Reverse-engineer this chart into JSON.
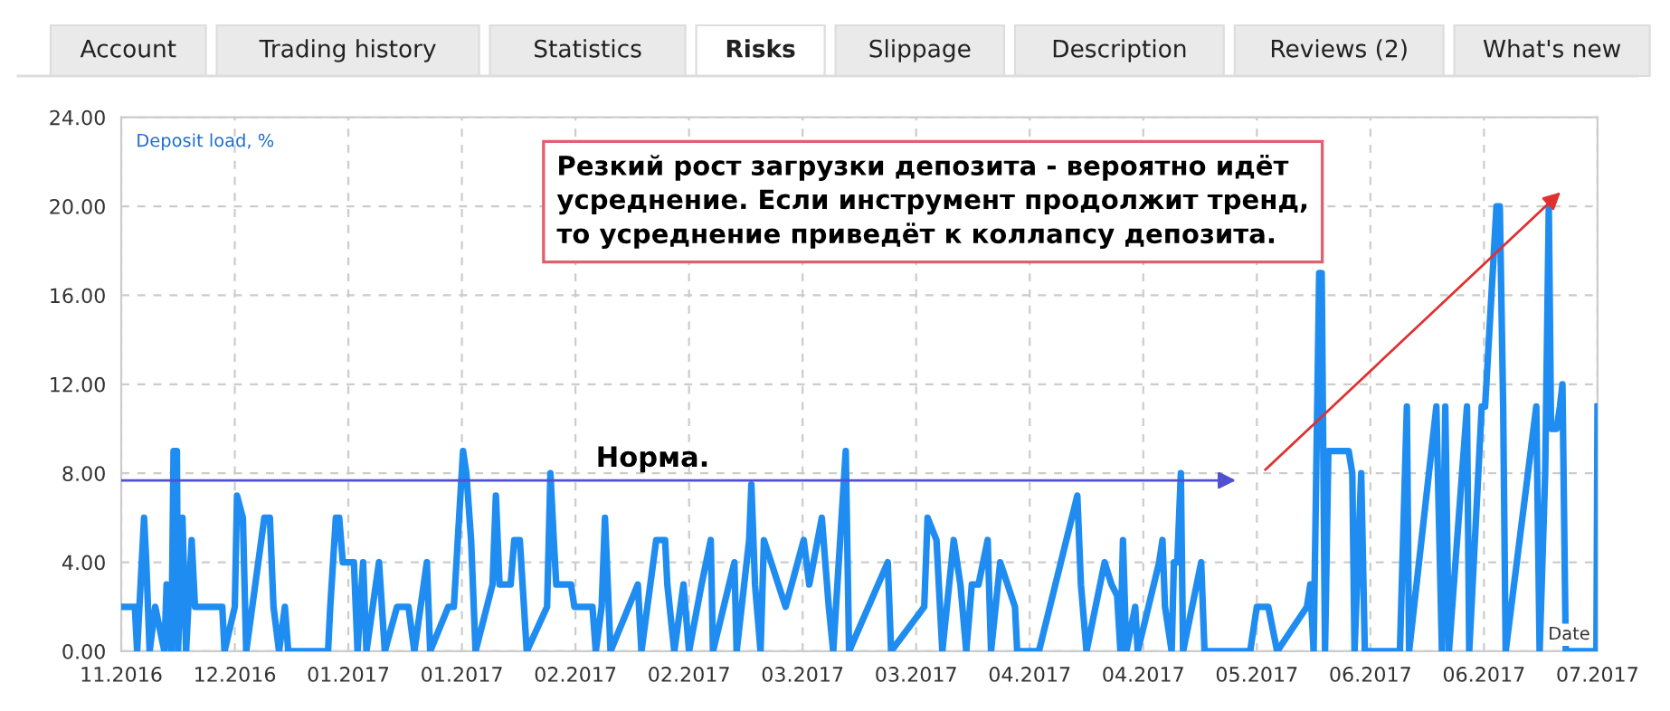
{
  "chart_data": {
    "type": "line",
    "ylabel": "Deposit load, %",
    "xlabel": "Date",
    "annotations": [
      "Account",
      "Trading history",
      "Statistics",
      "Risks",
      "Slippage",
      "Description",
      "Reviews (2)",
      "What's new",
      "Норма.",
      "Резкий рост загрузки депозита - вероятно идёт\nусреднение. Если инструмент продолжит тренд,\nто усреднение приведёт к коллапсу депозита."
    ],
    "xlim": [
      "2016-11-28",
      "2017-07-07"
    ],
    "ylim": [
      0,
      24
    ],
    "xticks": [
      {
        "value": "2016-11-28",
        "label": "11.2016"
      },
      {
        "value": "2016-12-15",
        "label": "12.2016"
      },
      {
        "value": "2017-01-01",
        "label": "01.2017"
      },
      {
        "value": "2017-01-18",
        "label": "01.2017"
      },
      {
        "value": "2017-02-04",
        "label": "02.2017"
      },
      {
        "value": "2017-02-21",
        "label": "02.2017"
      },
      {
        "value": "2017-03-10",
        "label": "03.2017"
      },
      {
        "value": "2017-03-27",
        "label": "03.2017"
      },
      {
        "value": "2017-04-13",
        "label": "04.2017"
      },
      {
        "value": "2017-04-30",
        "label": "04.2017"
      },
      {
        "value": "2017-05-17",
        "label": "05.2017"
      },
      {
        "value": "2017-06-03",
        "label": "06.2017"
      },
      {
        "value": "2017-06-20",
        "label": "06.2017"
      },
      {
        "value": "2017-07-07",
        "label": "07.2017"
      }
    ],
    "yticks": [
      {
        "value": 0,
        "label": "0.00"
      },
      {
        "value": 4,
        "label": "4.00"
      },
      {
        "value": 8,
        "label": "8.00"
      },
      {
        "value": 12,
        "label": "12.00"
      },
      {
        "value": 16,
        "label": "16.00"
      },
      {
        "value": 20,
        "label": "20.00"
      },
      {
        "value": 24,
        "label": "24.00"
      }
    ],
    "grid": true,
    "marker": "none",
    "line_style": "solid",
    "series": [
      {
        "color": "#1e8cf0",
        "x": [
          "2016-11-28T00:00",
          "2016-11-30T01:00",
          "2016-11-30T09:00",
          "2016-12-01T10:00",
          "2016-12-01T18:00",
          "2016-12-02T06:00",
          "2016-12-03T02:00",
          "2016-12-04T11:00",
          "2016-12-04T19:00",
          "2016-12-05T12:00",
          "2016-12-05T20:00",
          "2016-12-06T08:00",
          "2016-12-06T12:00",
          "2016-12-07T04:00",
          "2016-12-07T17:00",
          "2016-12-08T13:00",
          "2016-12-09T01:00",
          "2016-12-09T22:00",
          "2016-12-13T03:00",
          "2016-12-13T11:00",
          "2016-12-15T00:00",
          "2016-12-15T08:00",
          "2016-12-16T05:00",
          "2016-12-16T17:00",
          "2016-12-19T10:00",
          "2016-12-20T06:00",
          "2016-12-20T19:00",
          "2016-12-21T15:00",
          "2016-12-22T12:00",
          "2016-12-23T00:00",
          "2016-12-28T23:00",
          "2016-12-29T07:00",
          "2016-12-30T03:00",
          "2016-12-30T15:00",
          "2016-12-31T04:00",
          "2017-01-01T20:00",
          "2017-01-02T09:00",
          "2017-01-03T05:00",
          "2017-01-03T17:00",
          "2017-01-05T14:00",
          "2017-01-06T11:00",
          "2017-01-08T07:00",
          "2017-01-10T00:00",
          "2017-01-10T21:00",
          "2017-01-12T18:00",
          "2017-01-13T06:00",
          "2017-01-15T23:00",
          "2017-01-16T19:00",
          "2017-01-18T04:00",
          "2017-01-18T16:00",
          "2017-01-19T09:00",
          "2017-01-20T01:00",
          "2017-01-22T14:00",
          "2017-01-23T02:00",
          "2017-01-23T15:00",
          "2017-01-25T07:00",
          "2017-01-25T20:00",
          "2017-01-26T16:00",
          "2017-01-27T17:00",
          "2017-01-30T18:00",
          "2017-01-31T06:00",
          "2017-01-31T18:00",
          "2017-02-01T03:00",
          "2017-02-03T08:00",
          "2017-02-03T20:00",
          "2017-02-04T16:00",
          "2017-02-06T13:00",
          "2017-02-07T01:00",
          "2017-02-07T22:00",
          "2017-02-08T10:00",
          "2017-02-09T06:00",
          "2017-02-13T08:00",
          "2017-02-13T21:00",
          "2017-02-16T02:00",
          "2017-02-17T10:00",
          "2017-02-17T18:00",
          "2017-02-18T19:00",
          "2017-02-20T04:00",
          "2017-02-21T00:00",
          "2017-02-22T21:00",
          "2017-02-24T06:00",
          "2017-02-24T14:00",
          "2017-02-27T19:00",
          "2017-02-28T03:00",
          "2017-03-02T00:00",
          "2017-03-02T08:00",
          "2017-03-02T21:00",
          "2017-03-03T17:00",
          "2017-03-04T05:00",
          "2017-03-07T11:00",
          "2017-03-10T04:00",
          "2017-03-11T00:00",
          "2017-03-12T21:00",
          "2017-03-13T22:00",
          "2017-03-14T14:00",
          "2017-03-16T11:00",
          "2017-03-16T23:00",
          "2017-03-22T18:00",
          "2017-03-23T06:00",
          "2017-03-28T05:00",
          "2017-03-28T17:00",
          "2017-03-30T01:00",
          "2017-03-30T22:00",
          "2017-04-01T15:00",
          "2017-04-02T15:00",
          "2017-04-03T12:00",
          "2017-04-04T08:00",
          "2017-04-05T08:00",
          "2017-04-06T17:00",
          "2017-04-07T05:00",
          "2017-04-08T14:00",
          "2017-04-10T19:00",
          "2017-04-11T03:00",
          "2017-04-14T09:00",
          "2017-04-20T03:00",
          "2017-04-20T16:00",
          "2017-04-21T12:00",
          "2017-04-24T05:00",
          "2017-04-25T06:00",
          "2017-04-26T02:00",
          "2017-04-26T14:00",
          "2017-04-26T23:00",
          "2017-04-27T11:00",
          "2017-04-28T19:00",
          "2017-04-29T04:00",
          "2017-05-02T09:00",
          "2017-05-02T21:00",
          "2017-05-03T06:00",
          "2017-05-04T06:00",
          "2017-05-04T14:00",
          "2017-05-05T02:00",
          "2017-05-05T15:00",
          "2017-05-05T23:00",
          "2017-05-08T16:00",
          "2017-05-09T04:00",
          "2017-05-16T00:00",
          "2017-05-17T00:00",
          "2017-05-18T17:00",
          "2017-05-20T01:00",
          "2017-05-24T12:00",
          "2017-05-25T00:00",
          "2017-05-25T12:00",
          "2017-05-26T08:00",
          "2017-05-26T17:00",
          "2017-05-27T05:00",
          "2017-05-27T17:00",
          "2017-05-30T18:00",
          "2017-05-31T07:00",
          "2017-05-31T15:00",
          "2017-06-01T15:00",
          "2017-06-02T04:00",
          "2017-06-07T10:00",
          "2017-06-08T11:00",
          "2017-06-08T19:00",
          "2017-06-12T21:00",
          "2017-06-13T17:00",
          "2017-06-14T05:00",
          "2017-06-14T18:00",
          "2017-06-17T11:00",
          "2017-06-17T19:00",
          "2017-06-19T16:00",
          "2017-06-20T04:00",
          "2017-06-21T21:00",
          "2017-06-22T09:00",
          "2017-06-22T21:00",
          "2017-06-23T06:00",
          "2017-06-27T20:00",
          "2017-06-28T08:00",
          "2017-06-29T04:00",
          "2017-06-29T17:00",
          "2017-06-30T01:00",
          "2017-06-30T21:00",
          "2017-07-01T09:00",
          "2017-07-01T18:00",
          "2017-07-02T06:00",
          "2017-07-06T20:00",
          "2017-07-07T00:00"
        ],
        "values": [
          2,
          2,
          0,
          6,
          4,
          0,
          2,
          0,
          3,
          0,
          9,
          9,
          0,
          6,
          0,
          5,
          2,
          2,
          2,
          0,
          2,
          7,
          6,
          0,
          6,
          6,
          2,
          0,
          2,
          0,
          0,
          2,
          6,
          6,
          4,
          4,
          0,
          4,
          0,
          4,
          0,
          2,
          2,
          0,
          4,
          0,
          2,
          2,
          9,
          8,
          5,
          0,
          3,
          7,
          3,
          3,
          5,
          5,
          0,
          2,
          8,
          5,
          3,
          3,
          2,
          2,
          2,
          0,
          2,
          6,
          0,
          3,
          0,
          5,
          5,
          3,
          0,
          3,
          0,
          3,
          5,
          0,
          4,
          0,
          5,
          7.5,
          3,
          0,
          5,
          2,
          5,
          3,
          6,
          2,
          0,
          9,
          0,
          4,
          0,
          2,
          6,
          5,
          0,
          5,
          3,
          0,
          3,
          3,
          5,
          0,
          4,
          2,
          0,
          0,
          7,
          3,
          0,
          4,
          3,
          2.5,
          0,
          5,
          0,
          2,
          0,
          4,
          5,
          2,
          0,
          4,
          4,
          8,
          0,
          4,
          0,
          0,
          2,
          2,
          0,
          2,
          3,
          0,
          17,
          17,
          0,
          9,
          9,
          8,
          0,
          8,
          0,
          0,
          11,
          0,
          11,
          0,
          11,
          0,
          11,
          0,
          11,
          11,
          20,
          20,
          11,
          0,
          11,
          0,
          8,
          20,
          10,
          10,
          11,
          12,
          0,
          0,
          11
        ]
      }
    ]
  }
}
